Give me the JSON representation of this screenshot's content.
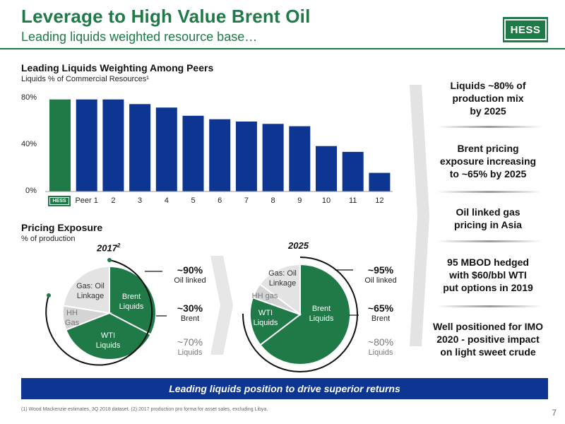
{
  "header": {
    "title": "Leverage to High Value Brent Oil",
    "subtitle": "Leading liquids weighted resource base…",
    "logo_text": "HESS"
  },
  "colors": {
    "green": "#1f7a48",
    "navy": "#0d3592",
    "light_gray": "#d4d4d4",
    "pale_gray": "#e3e3e3"
  },
  "chart_data": {
    "type": "bar",
    "title": "Leading Liquids Weighting Among Peers",
    "subtitle": "Liquids % of Commercial Resources¹",
    "categories": [
      "HESS",
      "Peer 1",
      "2",
      "3",
      "4",
      "5",
      "6",
      "7",
      "8",
      "9",
      "10",
      "11",
      "12"
    ],
    "values": [
      79,
      79,
      79,
      75,
      72,
      65,
      62,
      60,
      58,
      56,
      39,
      34,
      16
    ],
    "highlight_index": 0,
    "yticks": [
      "0%",
      "40%",
      "80%"
    ],
    "ylim": [
      0,
      80
    ],
    "grid": false,
    "legend": "none"
  },
  "pricing": {
    "title": "Pricing Exposure",
    "subtitle": "% of production",
    "pies": [
      {
        "year": "2017",
        "year_sup": "2",
        "slices": [
          {
            "label": "Brent Liquids",
            "value": 30,
            "color": "#1f7a48"
          },
          {
            "label": "WTI Liquids",
            "value": 40,
            "color": "#1f7a48"
          },
          {
            "label": "HH Gas",
            "value": 10,
            "color": "#d4d4d4"
          },
          {
            "label": "Gas: Oil Linkage",
            "value": 20,
            "color": "#e3e3e3"
          }
        ],
        "annotations": {
          "oil_value": "~90%",
          "oil_label": "Oil linked",
          "brent_value": "~30%",
          "brent_label": "Brent",
          "liquids_value": "~70%",
          "liquids_label": "Liquids"
        }
      },
      {
        "year": "2025",
        "year_sup": "",
        "slices": [
          {
            "label": "Brent Liquids",
            "value": 65,
            "color": "#1f7a48"
          },
          {
            "label": "WTI Liquids",
            "value": 15,
            "color": "#1f7a48"
          },
          {
            "label": "HH gas",
            "value": 5,
            "color": "#d4d4d4"
          },
          {
            "label": "Gas: Oil Linkage",
            "value": 15,
            "color": "#e3e3e3"
          }
        ],
        "annotations": {
          "oil_value": "~95%",
          "oil_label": "Oil linked",
          "brent_value": "~65%",
          "brent_label": "Brent",
          "liquids_value": "~80%",
          "liquids_label": "Liquids"
        }
      }
    ]
  },
  "sidebar": {
    "items": [
      {
        "line1": "Liquids ~80% of",
        "line2": "production mix",
        "line3": "by 2025"
      },
      {
        "line1": "Brent pricing",
        "line2": "exposure increasing",
        "line3": "to ~65% by 2025"
      },
      {
        "line1": "Oil linked gas",
        "line2": "pricing in Asia",
        "line3": ""
      },
      {
        "line1": "95 MBOD hedged",
        "line2": "with $60/bbl WTI",
        "line3": "put options in 2019"
      },
      {
        "line1": "Well positioned for IMO",
        "line2": "2020 - positive impact",
        "line3": "on light sweet crude"
      }
    ]
  },
  "banner": {
    "text": "Leading liquids position to drive superior returns"
  },
  "footnote": {
    "text": "(1) Wood Mackenzie estimates, 3Q 2018 dataset. (2) 2017 production pro forma for asset sales, excluding Libya."
  },
  "page_number": "7"
}
